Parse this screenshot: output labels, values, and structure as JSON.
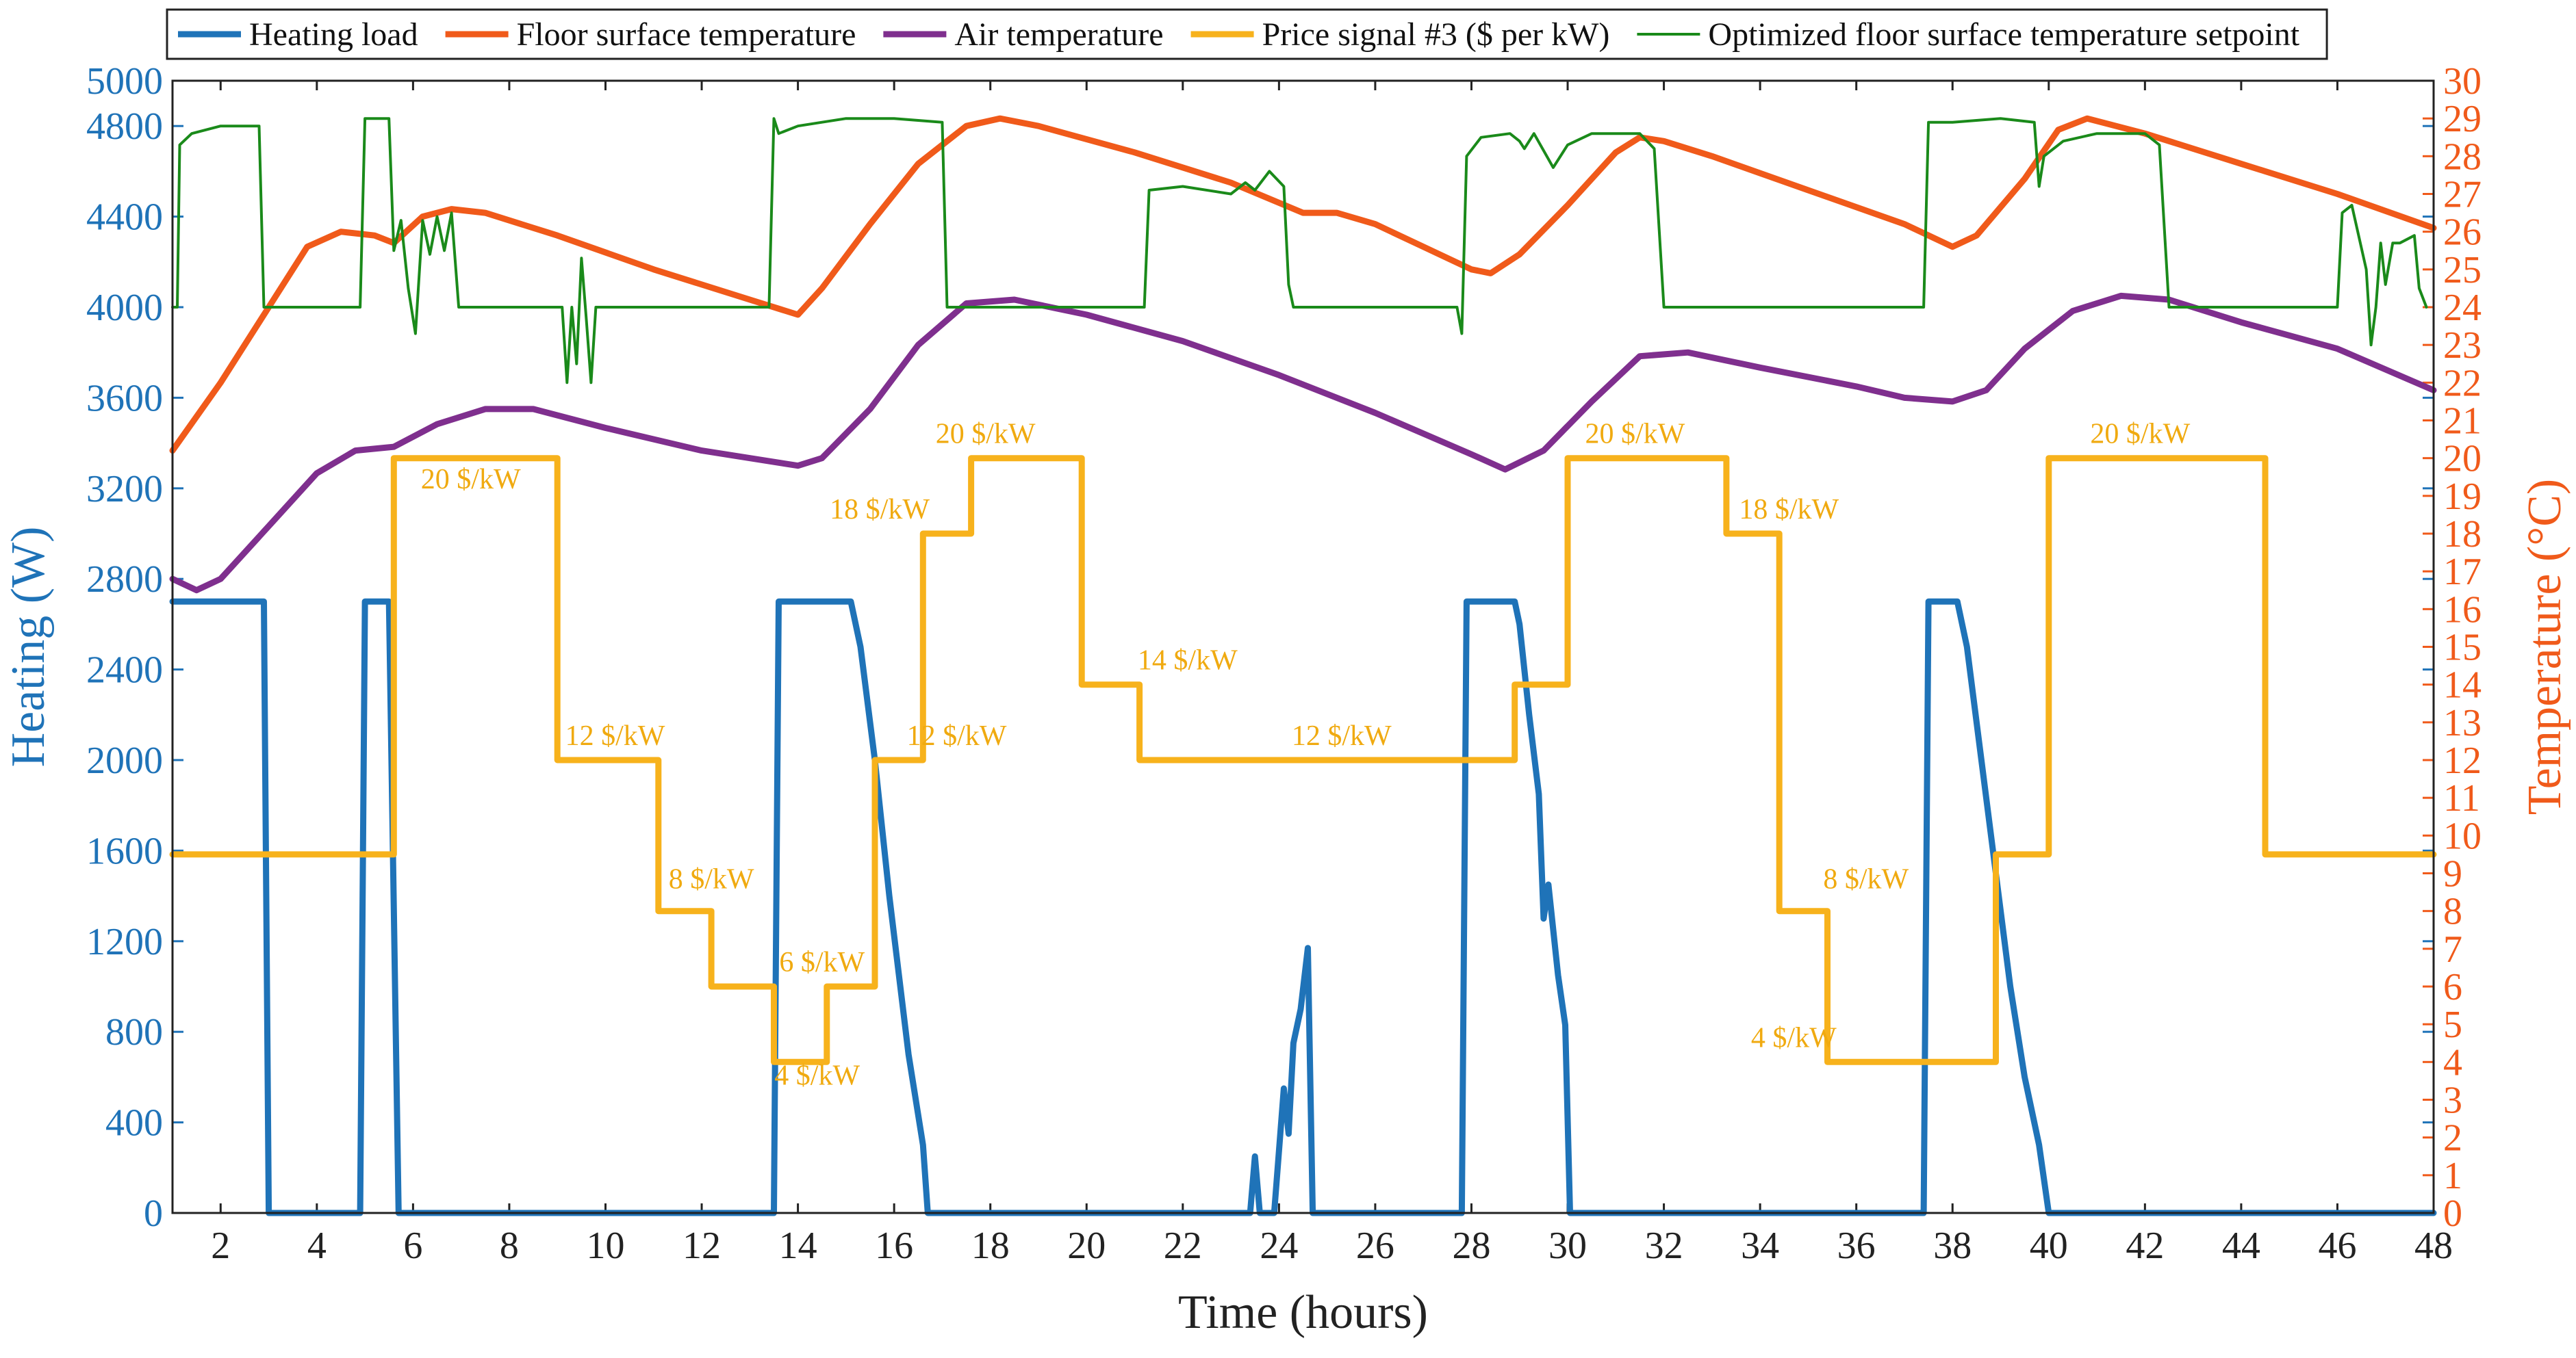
{
  "chart_data": {
    "type": "line",
    "x_axis": {
      "label": "Time (hours)",
      "range": [
        1,
        48
      ],
      "ticks": [
        2,
        4,
        6,
        8,
        10,
        12,
        14,
        16,
        18,
        20,
        22,
        24,
        26,
        28,
        30,
        32,
        34,
        36,
        38,
        40,
        42,
        44,
        46,
        48
      ]
    },
    "y_left": {
      "label": "Heating (W)",
      "range": [
        0,
        5000
      ],
      "ticks": [
        0,
        400,
        800,
        1200,
        1600,
        2000,
        2400,
        2800,
        3200,
        3600,
        4000,
        4400,
        4800,
        5000
      ]
    },
    "y_right": {
      "label": "Temperature (°C)",
      "range": [
        0,
        30
      ],
      "ticks": [
        0,
        1,
        2,
        3,
        4,
        5,
        6,
        7,
        8,
        9,
        10,
        11,
        12,
        13,
        14,
        15,
        16,
        17,
        18,
        19,
        20,
        21,
        22,
        23,
        24,
        25,
        26,
        27,
        28,
        29,
        30
      ]
    },
    "legend": {
      "placement": "top",
      "entries": [
        {
          "name": "Heating load",
          "color": "#1f73b8"
        },
        {
          "name": "Floor surface temperature",
          "color": "#f05a1a"
        },
        {
          "name": "Air temperature",
          "color": "#7f2f8e"
        },
        {
          "name": "Price signal #3 ($ per kW)",
          "color": "#f7b21c"
        },
        {
          "name": "Optimized floor surface temperature setpoint",
          "color": "#1a8a1a"
        }
      ]
    },
    "series": [
      {
        "name": "Heating load",
        "axis": "left",
        "color": "#1f73b8",
        "points": [
          [
            1,
            2700
          ],
          [
            2.9,
            2700
          ],
          [
            3,
            0
          ],
          [
            4.9,
            0
          ],
          [
            5,
            2700
          ],
          [
            5.5,
            2700
          ],
          [
            5.7,
            0
          ],
          [
            13.5,
            0
          ],
          [
            13.6,
            2700
          ],
          [
            15.1,
            2700
          ],
          [
            15.3,
            2500
          ],
          [
            15.6,
            2000
          ],
          [
            15.9,
            1400
          ],
          [
            16.3,
            700
          ],
          [
            16.6,
            300
          ],
          [
            16.7,
            0
          ],
          [
            23.4,
            0
          ],
          [
            23.5,
            250
          ],
          [
            23.6,
            0
          ],
          [
            23.9,
            0
          ],
          [
            24.1,
            550
          ],
          [
            24.2,
            350
          ],
          [
            24.3,
            750
          ],
          [
            24.45,
            900
          ],
          [
            24.6,
            1170
          ],
          [
            24.7,
            0
          ],
          [
            27.8,
            0
          ],
          [
            27.9,
            2700
          ],
          [
            28.9,
            2700
          ],
          [
            29.0,
            2600
          ],
          [
            29.2,
            2200
          ],
          [
            29.4,
            1850
          ],
          [
            29.5,
            1300
          ],
          [
            29.6,
            1450
          ],
          [
            29.8,
            1050
          ],
          [
            29.95,
            830
          ],
          [
            30.05,
            0
          ],
          [
            37.4,
            0
          ],
          [
            37.5,
            2700
          ],
          [
            38.1,
            2700
          ],
          [
            38.3,
            2500
          ],
          [
            38.6,
            2000
          ],
          [
            38.9,
            1500
          ],
          [
            39.2,
            1000
          ],
          [
            39.5,
            600
          ],
          [
            39.8,
            300
          ],
          [
            40.0,
            0
          ],
          [
            48,
            0
          ]
        ]
      },
      {
        "name": "Floor surface temperature",
        "axis": "right",
        "color": "#f05a1a",
        "points": [
          [
            1,
            20.2
          ],
          [
            2,
            22
          ],
          [
            3,
            24
          ],
          [
            3.8,
            25.6
          ],
          [
            4.5,
            26
          ],
          [
            5.2,
            25.9
          ],
          [
            5.6,
            25.7
          ],
          [
            6.2,
            26.4
          ],
          [
            6.8,
            26.6
          ],
          [
            7.5,
            26.5
          ],
          [
            9,
            25.9
          ],
          [
            11,
            25
          ],
          [
            13,
            24.2
          ],
          [
            14,
            23.8
          ],
          [
            14.5,
            24.5
          ],
          [
            15.5,
            26.2
          ],
          [
            16.5,
            27.8
          ],
          [
            17.5,
            28.8
          ],
          [
            18.2,
            29.0
          ],
          [
            19,
            28.8
          ],
          [
            21,
            28.1
          ],
          [
            23,
            27.3
          ],
          [
            24.5,
            26.5
          ],
          [
            25.2,
            26.5
          ],
          [
            26,
            26.2
          ],
          [
            27,
            25.6
          ],
          [
            28,
            25.0
          ],
          [
            28.4,
            24.9
          ],
          [
            29,
            25.4
          ],
          [
            30,
            26.7
          ],
          [
            31,
            28.1
          ],
          [
            31.5,
            28.5
          ],
          [
            32,
            28.4
          ],
          [
            33,
            28.0
          ],
          [
            35,
            27.1
          ],
          [
            37,
            26.2
          ],
          [
            38,
            25.6
          ],
          [
            38.5,
            25.9
          ],
          [
            39.5,
            27.4
          ],
          [
            40.2,
            28.7
          ],
          [
            40.8,
            29.0
          ],
          [
            42,
            28.6
          ],
          [
            44,
            27.8
          ],
          [
            46,
            27.0
          ],
          [
            48,
            26.1
          ]
        ]
      },
      {
        "name": "Air temperature",
        "axis": "right",
        "color": "#7f2f8e",
        "points": [
          [
            1,
            16.8
          ],
          [
            1.5,
            16.5
          ],
          [
            2,
            16.8
          ],
          [
            3,
            18.2
          ],
          [
            4,
            19.6
          ],
          [
            4.8,
            20.2
          ],
          [
            5.6,
            20.3
          ],
          [
            6.5,
            20.9
          ],
          [
            7.5,
            21.3
          ],
          [
            8.5,
            21.3
          ],
          [
            10,
            20.8
          ],
          [
            12,
            20.2
          ],
          [
            14,
            19.8
          ],
          [
            14.5,
            20
          ],
          [
            15.5,
            21.3
          ],
          [
            16.5,
            23
          ],
          [
            17.5,
            24.1
          ],
          [
            18.5,
            24.2
          ],
          [
            20,
            23.8
          ],
          [
            22,
            23.1
          ],
          [
            24,
            22.2
          ],
          [
            26,
            21.2
          ],
          [
            28,
            20.1
          ],
          [
            28.7,
            19.7
          ],
          [
            29.5,
            20.2
          ],
          [
            30.5,
            21.5
          ],
          [
            31.5,
            22.7
          ],
          [
            32.5,
            22.8
          ],
          [
            34,
            22.4
          ],
          [
            36,
            21.9
          ],
          [
            37,
            21.6
          ],
          [
            38,
            21.5
          ],
          [
            38.7,
            21.8
          ],
          [
            39.5,
            22.9
          ],
          [
            40.5,
            23.9
          ],
          [
            41.5,
            24.3
          ],
          [
            42.5,
            24.2
          ],
          [
            44,
            23.6
          ],
          [
            46,
            22.9
          ],
          [
            48,
            21.8
          ]
        ]
      },
      {
        "name": "Price signal #3 ($ per kW)",
        "axis": "right",
        "color": "#f7b21c",
        "points": [
          [
            1,
            9.5
          ],
          [
            5.6,
            9.5
          ],
          [
            5.6,
            20
          ],
          [
            9,
            20
          ],
          [
            9,
            12
          ],
          [
            11.1,
            12
          ],
          [
            11.1,
            8
          ],
          [
            12.2,
            8
          ],
          [
            12.2,
            6
          ],
          [
            13.5,
            6
          ],
          [
            13.5,
            4
          ],
          [
            14.6,
            4
          ],
          [
            14.6,
            6
          ],
          [
            15.6,
            6
          ],
          [
            15.6,
            12
          ],
          [
            16.6,
            12
          ],
          [
            16.6,
            18
          ],
          [
            17.6,
            18
          ],
          [
            17.6,
            20
          ],
          [
            19.9,
            20
          ],
          [
            19.9,
            14
          ],
          [
            21.1,
            14
          ],
          [
            21.1,
            12
          ],
          [
            28.9,
            12
          ],
          [
            28.9,
            14
          ],
          [
            30,
            14
          ],
          [
            30,
            20
          ],
          [
            33.3,
            20
          ],
          [
            33.3,
            18
          ],
          [
            34.4,
            18
          ],
          [
            34.4,
            8
          ],
          [
            35.4,
            8
          ],
          [
            35.4,
            4
          ],
          [
            38.9,
            4
          ],
          [
            38.9,
            9.5
          ],
          [
            40,
            9.5
          ],
          [
            40,
            20
          ],
          [
            44.5,
            20
          ],
          [
            44.5,
            9.5
          ],
          [
            48,
            9.5
          ]
        ]
      },
      {
        "name": "Optimized floor surface temperature setpoint",
        "axis": "right",
        "color": "#1a8a1a",
        "points": [
          [
            1,
            24
          ],
          [
            1.1,
            24
          ],
          [
            1.15,
            28.3
          ],
          [
            1.4,
            28.6
          ],
          [
            2,
            28.8
          ],
          [
            2.8,
            28.8
          ],
          [
            2.9,
            24
          ],
          [
            4.9,
            24
          ],
          [
            5,
            29
          ],
          [
            5.5,
            29
          ],
          [
            5.6,
            25.5
          ],
          [
            5.75,
            26.3
          ],
          [
            5.9,
            24.5
          ],
          [
            6.05,
            23.3
          ],
          [
            6.2,
            26.3
          ],
          [
            6.35,
            25.4
          ],
          [
            6.5,
            26.4
          ],
          [
            6.65,
            25.5
          ],
          [
            6.8,
            26.5
          ],
          [
            6.95,
            24
          ],
          [
            9,
            24
          ],
          [
            9.1,
            24
          ],
          [
            9.2,
            22
          ],
          [
            9.3,
            24
          ],
          [
            9.4,
            22.5
          ],
          [
            9.5,
            25.3
          ],
          [
            9.6,
            23.7
          ],
          [
            9.7,
            22
          ],
          [
            9.8,
            24
          ],
          [
            13.4,
            24
          ],
          [
            13.5,
            29
          ],
          [
            13.6,
            28.6
          ],
          [
            14,
            28.8
          ],
          [
            15,
            29
          ],
          [
            16,
            29
          ],
          [
            17,
            28.9
          ],
          [
            17.1,
            24
          ],
          [
            21.2,
            24
          ],
          [
            21.3,
            27.1
          ],
          [
            22,
            27.2
          ],
          [
            23,
            27
          ],
          [
            23.3,
            27.3
          ],
          [
            23.5,
            27.1
          ],
          [
            23.8,
            27.6
          ],
          [
            24.1,
            27.2
          ],
          [
            24.2,
            24.6
          ],
          [
            24.3,
            24
          ],
          [
            27.7,
            24
          ],
          [
            27.8,
            23.3
          ],
          [
            27.9,
            28
          ],
          [
            28.2,
            28.5
          ],
          [
            28.8,
            28.6
          ],
          [
            29,
            28.4
          ],
          [
            29.1,
            28.2
          ],
          [
            29.3,
            28.6
          ],
          [
            29.7,
            27.7
          ],
          [
            30,
            28.3
          ],
          [
            30.5,
            28.6
          ],
          [
            31.5,
            28.6
          ],
          [
            31.8,
            28.2
          ],
          [
            32,
            24
          ],
          [
            37.4,
            24
          ],
          [
            37.5,
            28.9
          ],
          [
            38,
            28.9
          ],
          [
            39,
            29
          ],
          [
            39.7,
            28.9
          ],
          [
            39.8,
            27.2
          ],
          [
            39.9,
            28
          ],
          [
            40.3,
            28.4
          ],
          [
            41,
            28.6
          ],
          [
            42,
            28.6
          ],
          [
            42.3,
            28.3
          ],
          [
            42.5,
            24
          ],
          [
            46,
            24
          ],
          [
            46.1,
            26.5
          ],
          [
            46.3,
            26.7
          ],
          [
            46.6,
            25
          ],
          [
            46.7,
            23
          ],
          [
            46.8,
            24
          ],
          [
            46.9,
            25.7
          ],
          [
            47,
            24.6
          ],
          [
            47.15,
            25.7
          ],
          [
            47.3,
            25.7
          ],
          [
            47.6,
            25.9
          ],
          [
            47.7,
            24.5
          ],
          [
            47.85,
            24
          ]
        ]
      }
    ],
    "annotations": [
      {
        "text": "20 $/kW",
        "x": 7.2,
        "y": 19.2
      },
      {
        "text": "12 $/kW",
        "x": 10.2,
        "y": 12.4
      },
      {
        "text": "8 $/kW",
        "x": 12.2,
        "y": 8.6
      },
      {
        "text": "6 $/kW",
        "x": 14.5,
        "y": 6.4
      },
      {
        "text": "4 $/kW",
        "x": 14.4,
        "y": 3.4
      },
      {
        "text": "18 $/kW",
        "x": 15.7,
        "y": 18.4
      },
      {
        "text": "20 $/kW",
        "x": 17.9,
        "y": 20.4
      },
      {
        "text": "14 $/kW",
        "x": 22.1,
        "y": 14.4
      },
      {
        "text": "12 $/kW",
        "x": 17.3,
        "y": 12.4
      },
      {
        "text": "12 $/kW",
        "x": 25.3,
        "y": 12.4
      },
      {
        "text": "20 $/kW",
        "x": 31.4,
        "y": 20.4
      },
      {
        "text": "18 $/kW",
        "x": 34.6,
        "y": 18.4
      },
      {
        "text": "8 $/kW",
        "x": 36.2,
        "y": 8.6
      },
      {
        "text": "4 $/kW",
        "x": 34.7,
        "y": 4.4
      },
      {
        "text": "20 $/kW",
        "x": 41.9,
        "y": 20.4
      }
    ]
  }
}
